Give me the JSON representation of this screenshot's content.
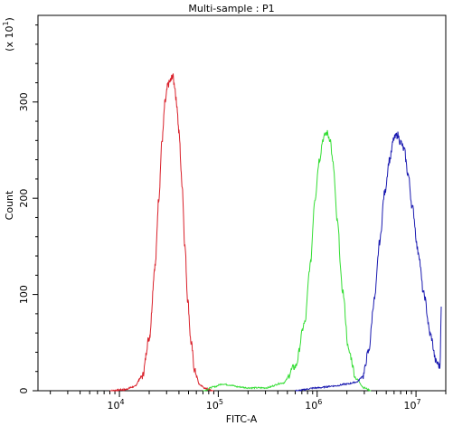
{
  "chart_data": {
    "type": "line",
    "title": "Multi-sample : P1",
    "xlabel": "FITC-A",
    "ylabel": "Count",
    "y_multiplier_label": "(x 10",
    "y_multiplier_exp": "1",
    "x_scale": "log",
    "xlim": [
      1500,
      20000000
    ],
    "ylim": [
      0,
      390
    ],
    "x_ticks": [
      {
        "base": "10",
        "exp": "4",
        "value": 10000
      },
      {
        "base": "10",
        "exp": "5",
        "value": 100000
      },
      {
        "base": "10",
        "exp": "6",
        "value": 1000000
      },
      {
        "base": "10",
        "exp": "7",
        "value": 10000000
      }
    ],
    "y_ticks": [
      {
        "label": "0",
        "value": 0
      },
      {
        "label": "100",
        "value": 100
      },
      {
        "label": "200",
        "value": 200
      },
      {
        "label": "300",
        "value": 300
      }
    ],
    "series": [
      {
        "color": "#d9202a",
        "x": [
          8000,
          11000,
          14000,
          17000,
          20000,
          23000,
          25000,
          27000,
          29000,
          31000,
          33000,
          34500,
          36000,
          38000,
          40000,
          43000,
          46000,
          49000,
          53000,
          58000,
          65000,
          75000,
          90000
        ],
        "y": [
          0,
          1,
          4,
          15,
          55,
          130,
          200,
          260,
          300,
          318,
          322,
          328,
          318,
          298,
          268,
          215,
          150,
          95,
          50,
          20,
          6,
          2,
          0
        ]
      },
      {
        "color": "#33dd33",
        "x": [
          70000,
          90000,
          110000,
          130000,
          160000,
          200000,
          300000,
          450000,
          600000,
          750000,
          850000,
          950000,
          1050000,
          1150000,
          1250000,
          1350000,
          1450000,
          1600000,
          1800000,
          2100000,
          2500000,
          3000000,
          3500000
        ],
        "y": [
          0,
          4,
          7,
          6,
          4,
          3,
          3,
          8,
          25,
          70,
          130,
          200,
          240,
          262,
          268,
          262,
          235,
          175,
          105,
          40,
          12,
          3,
          0
        ]
      },
      {
        "color": "#1a1ab0",
        "x": [
          600000,
          1000000,
          1500000,
          2000000,
          2500000,
          2900000,
          3300000,
          3800000,
          4300000,
          4800000,
          5400000,
          6000000,
          6500000,
          7000000,
          7600000,
          8300000,
          9200000,
          10500000,
          12000000,
          14000000,
          16000000,
          17500000,
          18000000
        ],
        "y": [
          0,
          3,
          5,
          7,
          9,
          15,
          40,
          95,
          155,
          205,
          240,
          262,
          266,
          258,
          250,
          225,
          190,
          145,
          100,
          58,
          30,
          25,
          90
        ]
      }
    ]
  }
}
